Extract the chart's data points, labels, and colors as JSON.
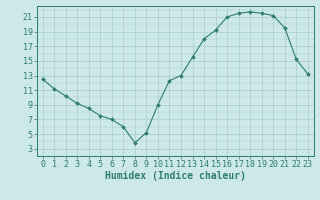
{
  "x": [
    0,
    1,
    2,
    3,
    4,
    5,
    6,
    7,
    8,
    9,
    10,
    11,
    12,
    13,
    14,
    15,
    16,
    17,
    18,
    19,
    20,
    21,
    22,
    23
  ],
  "y": [
    12.5,
    11.2,
    10.2,
    9.2,
    8.5,
    7.5,
    7.0,
    6.0,
    3.8,
    5.2,
    9.0,
    12.3,
    13.0,
    15.5,
    18.0,
    19.2,
    21.0,
    21.5,
    21.7,
    21.5,
    21.2,
    19.5,
    15.2,
    13.2
  ],
  "line_color": "#2e7d6e",
  "marker": "D",
  "marker_size": 2.0,
  "bg_color": "#cce8e8",
  "grid_color": "#aacccc",
  "ylabel_ticks": [
    3,
    5,
    7,
    9,
    11,
    13,
    15,
    17,
    19,
    21
  ],
  "xlabel": "Humidex (Indice chaleur)",
  "ylim": [
    2.0,
    22.5
  ],
  "xlim": [
    -0.5,
    23.5
  ],
  "axis_color": "#2e7d6e",
  "tick_fontsize": 6,
  "xlabel_fontsize": 7
}
